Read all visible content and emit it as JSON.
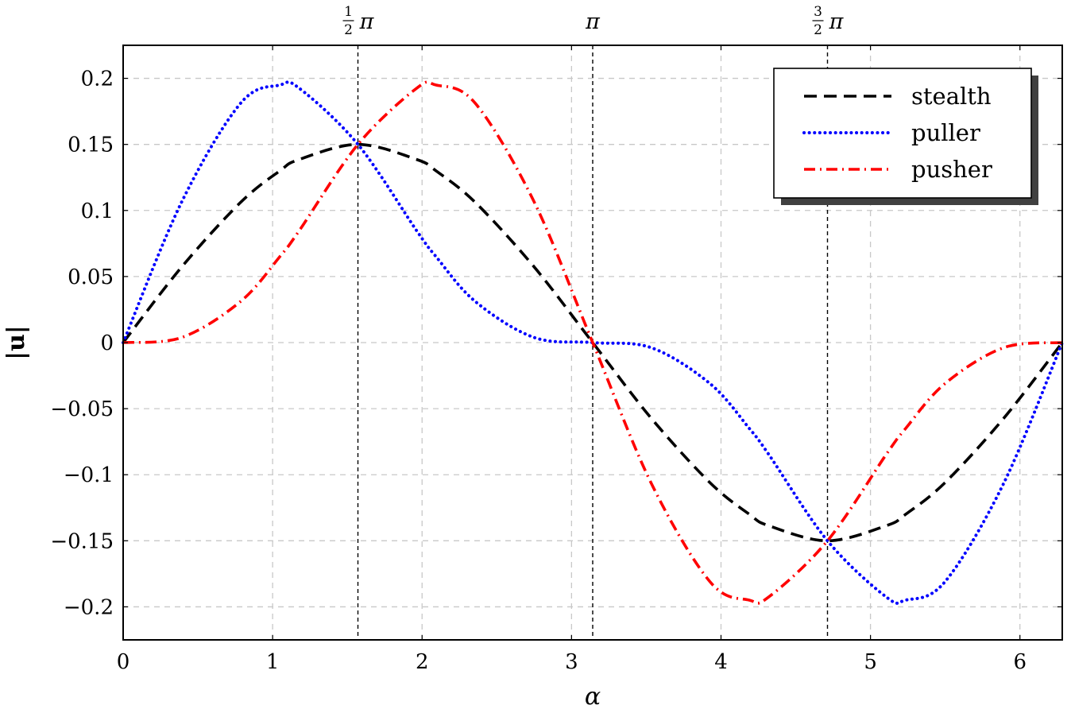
{
  "chart_data": {
    "type": "line",
    "xlabel": "α",
    "ylabel": "|u|",
    "xlim": [
      0,
      6.283185307
    ],
    "ylim": [
      -0.225,
      0.225
    ],
    "grid": true,
    "legend_position": "top-right",
    "x_ticks": [
      0,
      1,
      2,
      3,
      4,
      5,
      6
    ],
    "x_tick_labels": [
      "0",
      "1",
      "2",
      "3",
      "4",
      "5",
      "6"
    ],
    "y_ticks": [
      0.2,
      0.15,
      0.1,
      0.05,
      0,
      -0.05,
      -0.1,
      -0.15,
      -0.2
    ],
    "y_tick_labels": [
      "0.2",
      "0.15",
      "0.1",
      "0.05",
      "0",
      "−0.05",
      "−0.1",
      "−0.15",
      "−0.2"
    ],
    "annotations": [
      {
        "x": 1.5708,
        "label_num": "1",
        "label_den": "2",
        "label_sym": "π"
      },
      {
        "x": 3.1416,
        "label_num": "",
        "label_den": "",
        "label_sym": "π"
      },
      {
        "x": 4.7124,
        "label_num": "3",
        "label_den": "2",
        "label_sym": "π"
      }
    ],
    "x": [
      0.0,
      0.3927,
      0.7854,
      1.0472,
      1.1781,
      1.5708,
      1.9635,
      2.0944,
      2.3562,
      2.7489,
      3.1416,
      3.5343,
      3.927,
      4.1888,
      4.3197,
      4.7124,
      5.1051,
      5.236,
      5.4978,
      5.8905,
      6.2832
    ],
    "series": [
      {
        "name": "stealth",
        "color": "#000000",
        "dash": "dashed",
        "values": [
          0.0,
          0.0574,
          0.1061,
          0.1299,
          0.1386,
          0.15,
          0.1386,
          0.1299,
          0.1061,
          0.0574,
          0.0,
          -0.0574,
          -0.1061,
          -0.1299,
          -0.1386,
          -0.15,
          -0.1386,
          -0.1299,
          -0.1061,
          -0.0574,
          0.0
        ]
      },
      {
        "name": "puller",
        "color": "#0000ff",
        "dash": "dotted",
        "values": [
          0.0,
          0.1067,
          0.1811,
          0.1949,
          0.1925,
          0.15,
          0.0847,
          0.0649,
          0.0311,
          0.0039,
          0.0,
          -0.0039,
          -0.0311,
          -0.0649,
          -0.0847,
          -0.15,
          -0.1925,
          -0.1949,
          -0.1811,
          -0.1067,
          0.0
        ]
      },
      {
        "name": "pusher",
        "color": "#ff0000",
        "dash": "dashdot",
        "values": [
          0.0,
          0.0039,
          0.0311,
          0.0649,
          0.0847,
          0.15,
          0.1925,
          0.1949,
          0.1811,
          0.1067,
          0.0,
          -0.1067,
          -0.1811,
          -0.1949,
          -0.1925,
          -0.15,
          -0.0847,
          -0.0649,
          -0.0311,
          -0.0039,
          0.0
        ]
      }
    ]
  }
}
